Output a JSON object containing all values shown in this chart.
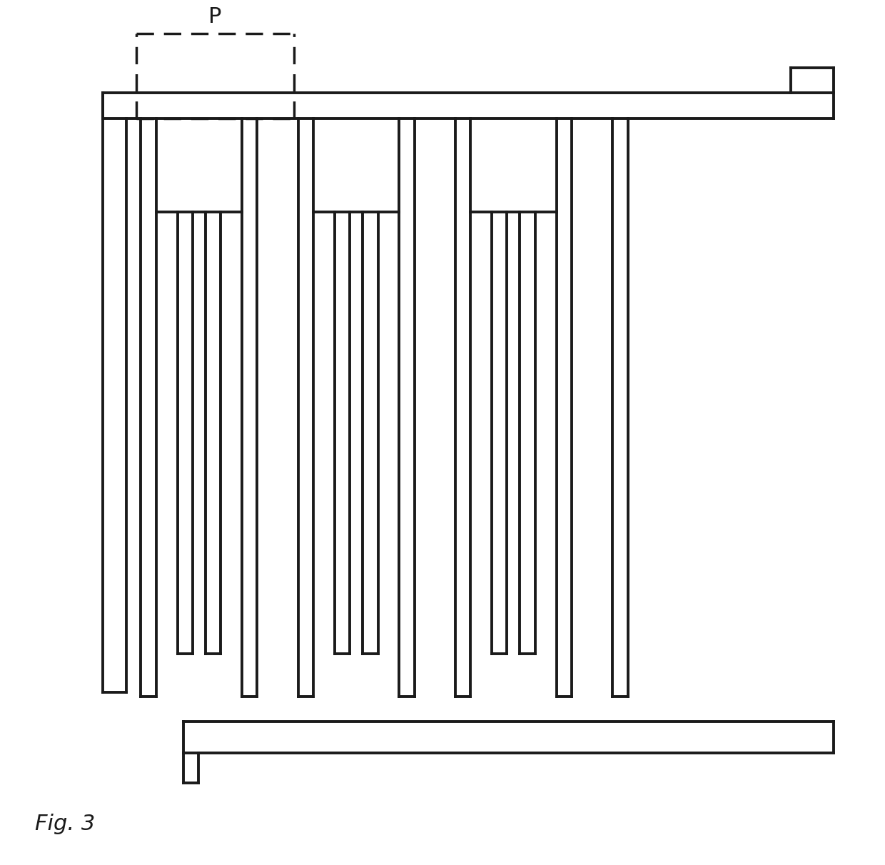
{
  "fig_width": 12.4,
  "fig_height": 12.12,
  "dpi": 100,
  "bg": "#ffffff",
  "lc": "#1a1a1a",
  "lw": 2.8,
  "fig_label": "Fig. 3",
  "P_label": "P",
  "P_fontsize": 22,
  "fig_fontsize": 22
}
